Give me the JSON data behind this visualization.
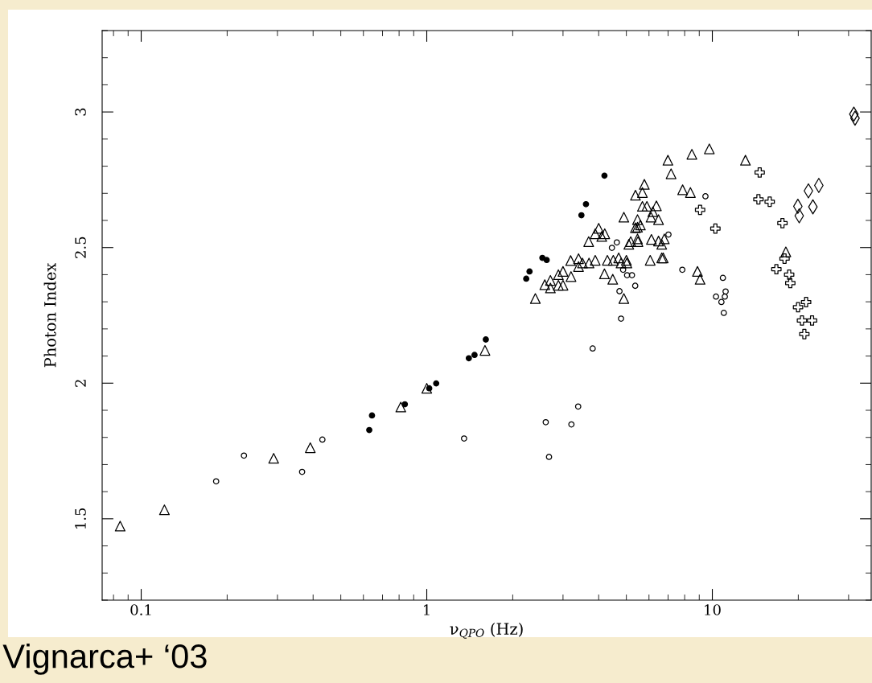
{
  "chart_data": {
    "type": "scatter",
    "xlabel": "ν$_{QPO}$ (Hz)",
    "ylabel": "Photon Index",
    "annotations": [
      "Vignarca+ ‘03"
    ],
    "log": "x",
    "xlim": [
      0.073,
      36
    ],
    "xticks": [
      0.1,
      1,
      10
    ],
    "ylim": [
      1.2,
      3.3
    ],
    "yticks": [
      1.5,
      2,
      2.5,
      3
    ],
    "grid": false,
    "legend": false,
    "series": [
      {
        "marker": "circle",
        "color": "#000000",
        "x": [
          0.629,
          0.643,
          0.838,
          1.02,
          1.079,
          1.404,
          1.47,
          1.61,
          2.23,
          2.29,
          2.54,
          2.63,
          3.48,
          3.61,
          4.19
        ],
        "values": [
          1.827,
          1.881,
          1.922,
          1.981,
          1.999,
          2.092,
          2.104,
          2.161,
          2.385,
          2.412,
          2.462,
          2.454,
          2.619,
          2.66,
          2.765
        ]
      },
      {
        "marker": "circle",
        "color": "#000000",
        "x": [
          0.183,
          0.229,
          0.366,
          0.431,
          1.351,
          2.61,
          2.68,
          3.21,
          3.39,
          3.81,
          4.45,
          4.63,
          4.87,
          5.03,
          5.23,
          4.73,
          5.37,
          4.79,
          7.02,
          9.46,
          7.85,
          10.89,
          10.3,
          11.13,
          11.06,
          10.76,
          10.97
        ],
        "values": [
          1.638,
          1.733,
          1.673,
          1.792,
          1.796,
          1.856,
          1.728,
          1.848,
          1.914,
          2.128,
          2.499,
          2.519,
          2.418,
          2.398,
          2.398,
          2.339,
          2.359,
          2.238,
          2.548,
          2.689,
          2.418,
          2.388,
          2.319,
          2.338,
          2.319,
          2.299,
          2.259
        ]
      },
      {
        "marker": "triangle",
        "color": "#000000",
        "x": [
          0.0844,
          0.1206,
          0.291,
          0.391,
          0.811,
          1.0,
          1.599,
          2.4,
          2.59,
          2.71,
          2.71,
          2.89,
          3.0,
          2.89,
          3.0,
          3.2,
          3.19,
          3.4,
          3.4,
          3.51,
          3.7,
          3.89,
          3.69,
          3.89,
          4.0,
          4.1,
          4.2,
          4.19,
          4.48,
          4.29,
          4.5,
          4.7,
          4.79,
          5.0,
          5.02,
          4.9,
          4.9,
          5.1,
          5.18,
          5.47,
          5.49,
          5.38,
          5.47,
          5.6,
          5.47,
          5.38,
          5.69,
          5.78,
          5.69,
          5.9,
          6.1,
          6.12,
          6.06,
          6.37,
          6.19,
          6.48,
          6.48,
          6.79,
          6.65,
          6.65,
          6.73,
          6.99,
          7.17,
          8.48,
          9.76,
          7.87,
          8.38,
          8.87,
          9.06,
          13.06,
          18.09
        ],
        "values": [
          1.473,
          1.533,
          1.723,
          1.762,
          1.912,
          1.981,
          2.121,
          2.312,
          2.363,
          2.351,
          2.379,
          2.4,
          2.412,
          2.361,
          2.361,
          2.393,
          2.452,
          2.459,
          2.43,
          2.443,
          2.443,
          2.453,
          2.522,
          2.551,
          2.571,
          2.541,
          2.551,
          2.403,
          2.383,
          2.453,
          2.453,
          2.462,
          2.443,
          2.453,
          2.443,
          2.312,
          2.612,
          2.512,
          2.522,
          2.532,
          2.522,
          2.573,
          2.575,
          2.583,
          2.603,
          2.693,
          2.703,
          2.733,
          2.652,
          2.652,
          2.612,
          2.53,
          2.453,
          2.654,
          2.632,
          2.603,
          2.524,
          2.532,
          2.512,
          2.462,
          2.462,
          2.822,
          2.772,
          2.844,
          2.864,
          2.713,
          2.703,
          2.412,
          2.383,
          2.822,
          2.484
        ]
      },
      {
        "marker": "cross",
        "color": "#000000",
        "x": [
          9.06,
          10.25,
          14.65,
          14.5,
          15.88,
          17.6,
          17.9,
          16.76,
          18.58,
          18.75,
          19.96,
          21.3,
          20.6,
          22.35,
          21.0
        ],
        "values": [
          2.639,
          2.57,
          2.777,
          2.678,
          2.669,
          2.59,
          2.459,
          2.42,
          2.4,
          2.369,
          2.28,
          2.299,
          2.231,
          2.231,
          2.181
        ]
      },
      {
        "marker": "diamond",
        "color": "#000000",
        "x": [
          19.93,
          20.15,
          21.7,
          22.5,
          23.6,
          31.3,
          31.6
        ],
        "values": [
          2.652,
          2.617,
          2.709,
          2.65,
          2.729,
          2.992,
          2.977
        ]
      }
    ]
  }
}
